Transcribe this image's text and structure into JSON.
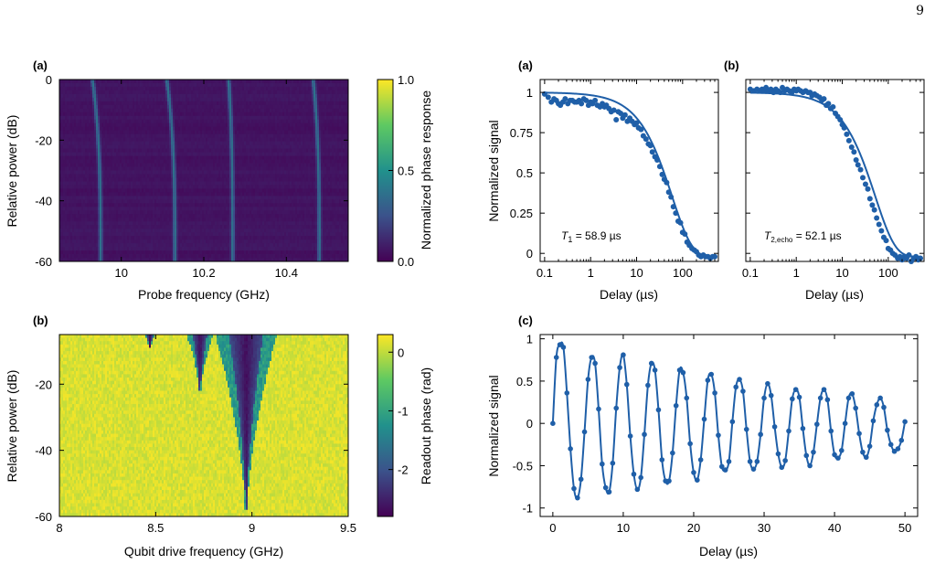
{
  "page": {
    "number": "9"
  },
  "panels": {
    "a_map": {
      "label": "(a)",
      "xlabel": "Probe frequency (GHz)",
      "ylabel": "Relative power (dB)",
      "colorbar_label": "Normalized phase response",
      "x_ticks": [
        "10",
        "10.2",
        "10.4"
      ],
      "y_ticks": [
        "0",
        "-20",
        "-40",
        "-60"
      ],
      "cb_ticks": [
        "1.0",
        "0.5",
        "0.0"
      ]
    },
    "b_map": {
      "label": "(b)",
      "xlabel": "Qubit drive frequency (GHz)",
      "ylabel": "Relative power (dB)",
      "colorbar_label": "Readout phase (rad)",
      "x_ticks": [
        "8",
        "8.5",
        "9",
        "9.5"
      ],
      "y_ticks": [
        "-20",
        "-40",
        "-60"
      ],
      "cb_ticks": [
        "0",
        "-1",
        "-2"
      ]
    },
    "t1": {
      "label": "(a)",
      "xlabel": "Delay (µs)",
      "ylabel": "Normalized signal",
      "annotation_sym": "T",
      "annotation_sub": "1",
      "annotation_val": " = 58.9 µs",
      "x_ticks": [
        "0.1",
        "1",
        "10",
        "100"
      ],
      "y_ticks": [
        "1",
        "0.75",
        "0.5",
        "0.25",
        "0"
      ]
    },
    "t2echo": {
      "label": "(b)",
      "xlabel": "Delay (µs)",
      "annotation_sym": "T",
      "annotation_sub": "2,echo",
      "annotation_val": " = 52.1 µs",
      "x_ticks": [
        "0.1",
        "1",
        "10",
        "100"
      ]
    },
    "ramsey": {
      "label": "(c)",
      "xlabel": "Delay (µs)",
      "ylabel": "Normalized signal",
      "x_ticks": [
        "0",
        "10",
        "20",
        "30",
        "40",
        "50"
      ],
      "y_ticks": [
        "1",
        "0.5",
        "0",
        "-0.5",
        "-1"
      ]
    }
  },
  "chart_data": [
    {
      "type": "heatmap",
      "panel": "a_map",
      "xlabel": "Probe frequency (GHz)",
      "ylabel": "Relative power (dB)",
      "xlim": [
        9.85,
        10.55
      ],
      "ylim": [
        -60,
        0
      ],
      "colorbar": {
        "label": "Normalized phase response",
        "range": [
          0.0,
          1.0
        ],
        "colormap": "viridis"
      },
      "resonances": [
        {
          "f_low_power": 9.95,
          "f_high_power": 9.93
        },
        {
          "f_low_power": 10.13,
          "f_high_power": 10.11
        },
        {
          "f_low_power": 10.27,
          "f_high_power": 10.26
        },
        {
          "f_low_power": 10.48,
          "f_high_power": 10.465
        }
      ]
    },
    {
      "type": "heatmap",
      "panel": "b_map",
      "xlabel": "Qubit drive frequency (GHz)",
      "ylabel": "Relative power (dB)",
      "xlim": [
        8.0,
        9.5
      ],
      "ylim": [
        -60,
        -5
      ],
      "colorbar": {
        "label": "Readout phase (rad)",
        "range": [
          -2.8,
          0.3
        ],
        "colormap": "viridis"
      },
      "features": [
        {
          "f_center": 8.47,
          "bottom_db": -9
        },
        {
          "f_center": 8.73,
          "bottom_db": -22
        },
        {
          "f_center": 8.97,
          "bottom_db": -58
        }
      ]
    },
    {
      "type": "scatter",
      "panel": "t1",
      "xscale": "log",
      "xlim": [
        0.08,
        600
      ],
      "ylim": [
        -0.05,
        1.08
      ],
      "xlabel": "Delay (µs)",
      "ylabel": "Normalized signal",
      "fit": {
        "T1_us": 58.9,
        "offset": -0.02
      },
      "series": [
        {
          "x": [
            0.1,
            0.12,
            0.14,
            0.16,
            0.18,
            0.2,
            0.22,
            0.25,
            0.28,
            0.32,
            0.36,
            0.4,
            0.45,
            0.5,
            0.56,
            0.63,
            0.71,
            0.8,
            0.9,
            1.0,
            1.1,
            1.25,
            1.4,
            1.6,
            1.8,
            2.0,
            2.2,
            2.5,
            2.8,
            3.2,
            3.6,
            4.0,
            4.5,
            5.0,
            5.6,
            6.3,
            7.1,
            8.0,
            9,
            10,
            11,
            12.5,
            14,
            16,
            18,
            20,
            22,
            25,
            28,
            32,
            36,
            40,
            45,
            50,
            56,
            63,
            71,
            80,
            90,
            100,
            112,
            125,
            140,
            160,
            180,
            200,
            224,
            251,
            282,
            316,
            355,
            400,
            450,
            500
          ],
          "y": [
            0.99,
            0.97,
            0.94,
            0.96,
            0.95,
            0.93,
            0.92,
            0.94,
            0.96,
            0.93,
            0.95,
            0.95,
            0.94,
            0.94,
            0.95,
            0.93,
            0.96,
            0.95,
            0.92,
            0.94,
            0.93,
            0.95,
            0.92,
            0.91,
            0.93,
            0.91,
            0.92,
            0.9,
            0.88,
            0.89,
            0.83,
            0.88,
            0.87,
            0.84,
            0.86,
            0.82,
            0.84,
            0.82,
            0.8,
            0.81,
            0.78,
            0.77,
            0.73,
            0.71,
            0.68,
            0.67,
            0.63,
            0.6,
            0.58,
            0.54,
            0.49,
            0.46,
            0.44,
            0.38,
            0.35,
            0.29,
            0.25,
            0.2,
            0.19,
            0.13,
            0.12,
            0.07,
            0.05,
            0.03,
            0.02,
            0.01,
            -0.01,
            -0.02,
            -0.01,
            -0.02,
            -0.02,
            -0.03,
            -0.02,
            -0.02
          ]
        }
      ]
    },
    {
      "type": "scatter",
      "panel": "t2echo",
      "xscale": "log",
      "xlim": [
        0.08,
        600
      ],
      "ylim": [
        -0.05,
        1.08
      ],
      "xlabel": "Delay (µs)",
      "fit": {
        "T2echo_us": 52.1,
        "offset": -0.02
      },
      "series": [
        {
          "x": [
            0.1,
            0.12,
            0.14,
            0.16,
            0.18,
            0.2,
            0.22,
            0.25,
            0.28,
            0.32,
            0.36,
            0.4,
            0.45,
            0.5,
            0.56,
            0.63,
            0.71,
            0.8,
            0.9,
            1.0,
            1.1,
            1.25,
            1.4,
            1.6,
            1.8,
            2.0,
            2.2,
            2.5,
            2.8,
            3.2,
            3.6,
            4.0,
            4.5,
            5.0,
            5.6,
            6.3,
            7.1,
            8.0,
            9,
            10,
            11,
            12.5,
            14,
            16,
            18,
            20,
            22,
            25,
            28,
            32,
            36,
            40,
            45,
            50,
            56,
            63,
            71,
            80,
            90,
            100,
            112,
            125,
            140,
            160,
            180,
            200,
            224,
            251,
            282,
            316,
            355,
            400,
            450,
            500
          ],
          "y": [
            1.02,
            1.01,
            1.02,
            1.01,
            1.02,
            1.01,
            1.03,
            1.01,
            1.02,
            1.0,
            1.02,
            1.01,
            1.0,
            1.03,
            1.01,
            1.02,
            1.01,
            1.0,
            1.02,
            1.01,
            1.02,
            1.01,
            1.0,
            1.01,
            1.0,
            1.0,
            0.98,
            0.99,
            0.98,
            0.97,
            0.95,
            0.96,
            0.92,
            0.93,
            0.9,
            0.91,
            0.87,
            0.85,
            0.83,
            0.8,
            0.78,
            0.74,
            0.7,
            0.66,
            0.63,
            0.58,
            0.55,
            0.52,
            0.47,
            0.43,
            0.4,
            0.34,
            0.3,
            0.27,
            0.22,
            0.18,
            0.14,
            0.1,
            0.08,
            0.03,
            0.02,
            0.0,
            -0.01,
            -0.03,
            -0.02,
            -0.04,
            -0.02,
            -0.03,
            -0.01,
            -0.05,
            -0.03,
            -0.02,
            -0.04,
            -0.03
          ]
        }
      ]
    },
    {
      "type": "line",
      "panel": "ramsey",
      "xlim": [
        -1.8,
        51.8
      ],
      "ylim": [
        -1.1,
        1.05
      ],
      "xlabel": "Delay (µs)",
      "ylabel": "Normalized signal",
      "fit": {
        "amplitude": 0.92,
        "frequency_MHz": 0.2,
        "phase_rad": -1.2,
        "decay_us": 62
      },
      "series": [
        {
          "x_start": 0,
          "x_step": 0.5,
          "x_end": 50,
          "y": [
            0,
            0.78,
            0.93,
            0.9,
            0.36,
            -0.3,
            -0.77,
            -0.88,
            -0.66,
            -0.1,
            0.52,
            0.78,
            0.71,
            0.17,
            -0.48,
            -0.76,
            -0.81,
            -0.47,
            0.18,
            0.66,
            0.81,
            0.46,
            -0.15,
            -0.6,
            -0.78,
            -0.64,
            -0.13,
            0.45,
            0.71,
            0.63,
            0.16,
            -0.43,
            -0.68,
            -0.68,
            -0.35,
            0.21,
            0.63,
            0.6,
            0.3,
            -0.24,
            -0.58,
            -0.67,
            -0.43,
            0.05,
            0.51,
            0.58,
            0.36,
            -0.14,
            -0.51,
            -0.55,
            -0.45,
            0.02,
            0.43,
            0.52,
            0.38,
            -0.07,
            -0.45,
            -0.54,
            -0.45,
            -0.13,
            0.3,
            0.47,
            0.33,
            -0.04,
            -0.36,
            -0.52,
            -0.44,
            -0.09,
            0.29,
            0.4,
            0.31,
            -0.06,
            -0.38,
            -0.5,
            -0.34,
            -0.01,
            0.3,
            0.4,
            0.28,
            -0.09,
            -0.37,
            -0.41,
            -0.32,
            0.0,
            0.3,
            0.35,
            0.18,
            -0.12,
            -0.34,
            -0.4,
            -0.27,
            0.03,
            0.22,
            0.3,
            0.19,
            -0.08,
            -0.25,
            -0.33,
            -0.3,
            -0.2,
            0.02
          ]
        }
      ]
    }
  ]
}
